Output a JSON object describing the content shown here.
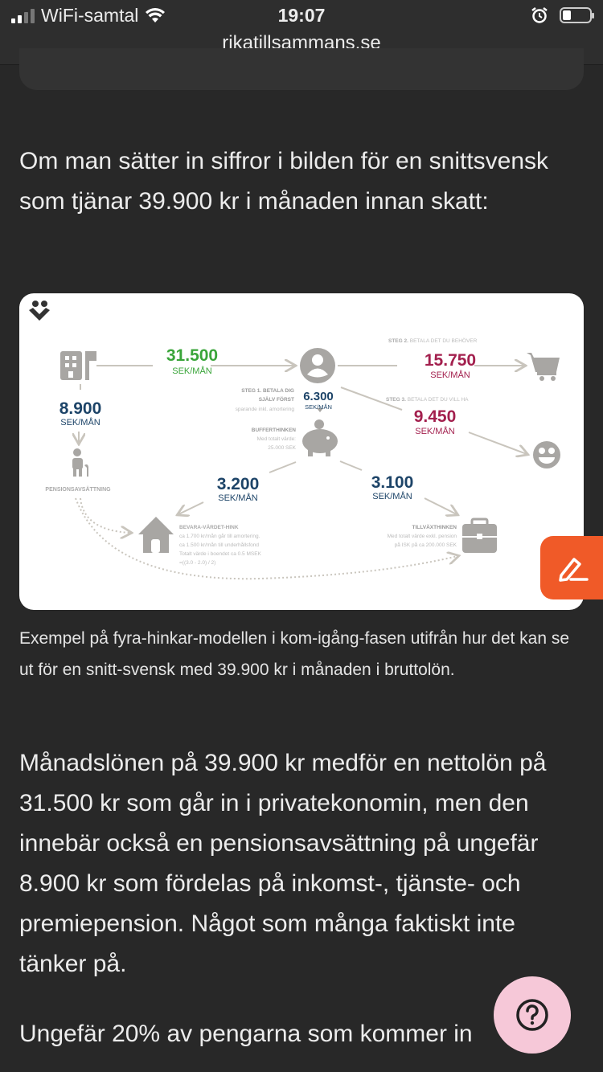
{
  "status_bar": {
    "carrier": "WiFi-samtal",
    "time": "19:07",
    "url": "rikatillsammans.se",
    "signal_bars": 2,
    "battery_level": 0.25
  },
  "article": {
    "intro": "Om man sätter in siffror i bilden för en snittsvensk som tjänar 39.900 kr i månaden innan skatt:",
    "caption": "Exempel på fyra-hinkar-modellen i kom-igång-fasen utifrån hur det kan se ut för en snitt-svensk med 39.900 kr i månaden i bruttolön.",
    "paragraph1": "Månadslönen på 39.900 kr medför en nettolön på 31.500 kr som går in i privatekonomin, men den innebär också en pensionsavsättning på ungefär 8.900 kr som fördelas på inkomst-, tjänste- och premiepension. Något som många faktiskt inte tänker på.",
    "paragraph2": "Ungefär 20% av pengarna som kommer in"
  },
  "infographic": {
    "net_amount": "31.500",
    "pension_amount": "8.900",
    "unit": "SEK/MÅN",
    "pension_label": "PENSIONSAVSÄTTNING",
    "step1_title_1": "STEG 1. BETALA DIG",
    "step1_title_2": "SJÄLV FÖRST",
    "step1_sub": "sparande inkl. amortering",
    "step1_amount": "6.300",
    "step2_bold": "STEG 2.",
    "step2_text": "BETALA DET DU BEHÖVER",
    "step2_amount": "15.750",
    "step3_bold": "STEG 3.",
    "step3_text": "BETALA DET DU VILL HA",
    "step3_amount": "9.450",
    "buffer_title": "BUFFERTHINKEN",
    "buffer_line1": "Med totalt värde:",
    "buffer_line2": "25.000 SEK",
    "preserve_amount": "3.200",
    "preserve_title": "BEVARA-VÄRDET-HINK",
    "preserve_line1": "ca 1.700 kr/mån går till amortering.",
    "preserve_line2": "ca 1.500 kr/mån till underhållsfond",
    "preserve_line3": "Totalt värde i boendet ca 0.5 MSEK",
    "preserve_line4": "=((3.0 - 2.0) / 2)",
    "growth_amount": "3.100",
    "growth_title": "TILLVÄXTHINKEN",
    "growth_line1": "Med totalt värde exkl. pension",
    "growth_line2": "på ISK på ca 200.000 SEK",
    "colors": {
      "green": "#3aa53a",
      "navy": "#1d4468",
      "crimson": "#a3204e",
      "grey": "#a8a6a3"
    }
  },
  "buttons": {
    "edit_icon": "pencil-icon",
    "help_icon": "question-icon",
    "edit_color": "#f05a28",
    "help_color": "#f6c8d8"
  }
}
